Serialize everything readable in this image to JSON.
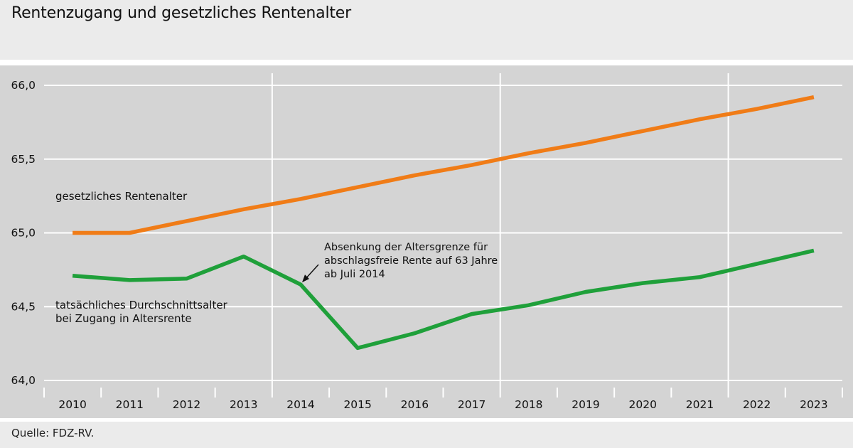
{
  "title": "Rentenzugang und gesetzliches Rentenalter",
  "source": "Quelle: FDZ-RV.",
  "colors": {
    "background": "#ebebeb",
    "plot_background": "#d4d4d4",
    "grid": "#ffffff",
    "legal_age": "#f07c17",
    "actual_age": "#1fa03a",
    "text": "#111111"
  },
  "chart_data": {
    "type": "line",
    "title": "Rentenzugang und gesetzliches Rentenalter",
    "xlabel": "",
    "ylabel": "",
    "categories": [
      "2010",
      "2011",
      "2012",
      "2013",
      "2014",
      "2015",
      "2016",
      "2017",
      "2018",
      "2019",
      "2020",
      "2021",
      "2022",
      "2023"
    ],
    "ylim": [
      64.0,
      66.0
    ],
    "yticks": [
      64.0,
      64.5,
      65.0,
      65.5,
      66.0
    ],
    "ytick_labels": [
      "64,0",
      "64,5",
      "65,0",
      "65,5",
      "66,0"
    ],
    "highlighted_x_gridlines": [
      "2014",
      "2018",
      "2022"
    ],
    "series": [
      {
        "name": "gesetzliches Rentenalter",
        "label_lines": [
          "gesetzliches Rentenalter"
        ],
        "color": "#f07c17",
        "values": [
          65.0,
          65.0,
          65.08,
          65.16,
          65.23,
          65.31,
          65.39,
          65.46,
          65.54,
          65.61,
          65.69,
          65.77,
          65.84,
          65.92
        ]
      },
      {
        "name": "tatsächliches Durchschnittsalter bei Zugang in Altersrente",
        "label_lines": [
          "tatsächliches Durchschnittsalter",
          "bei Zugang in Altersrente"
        ],
        "color": "#1fa03a",
        "values": [
          64.71,
          64.68,
          64.69,
          64.84,
          64.65,
          64.22,
          64.32,
          64.45,
          64.51,
          64.6,
          64.66,
          64.7,
          64.79,
          64.88
        ]
      }
    ],
    "annotation": {
      "lines": [
        "Absenkung der Altersgrenze für",
        "abschlagsfreie Rente auf 63 Jahre",
        "ab Juli 2014"
      ],
      "points_to": {
        "x": "2014",
        "y": 64.65
      }
    }
  }
}
